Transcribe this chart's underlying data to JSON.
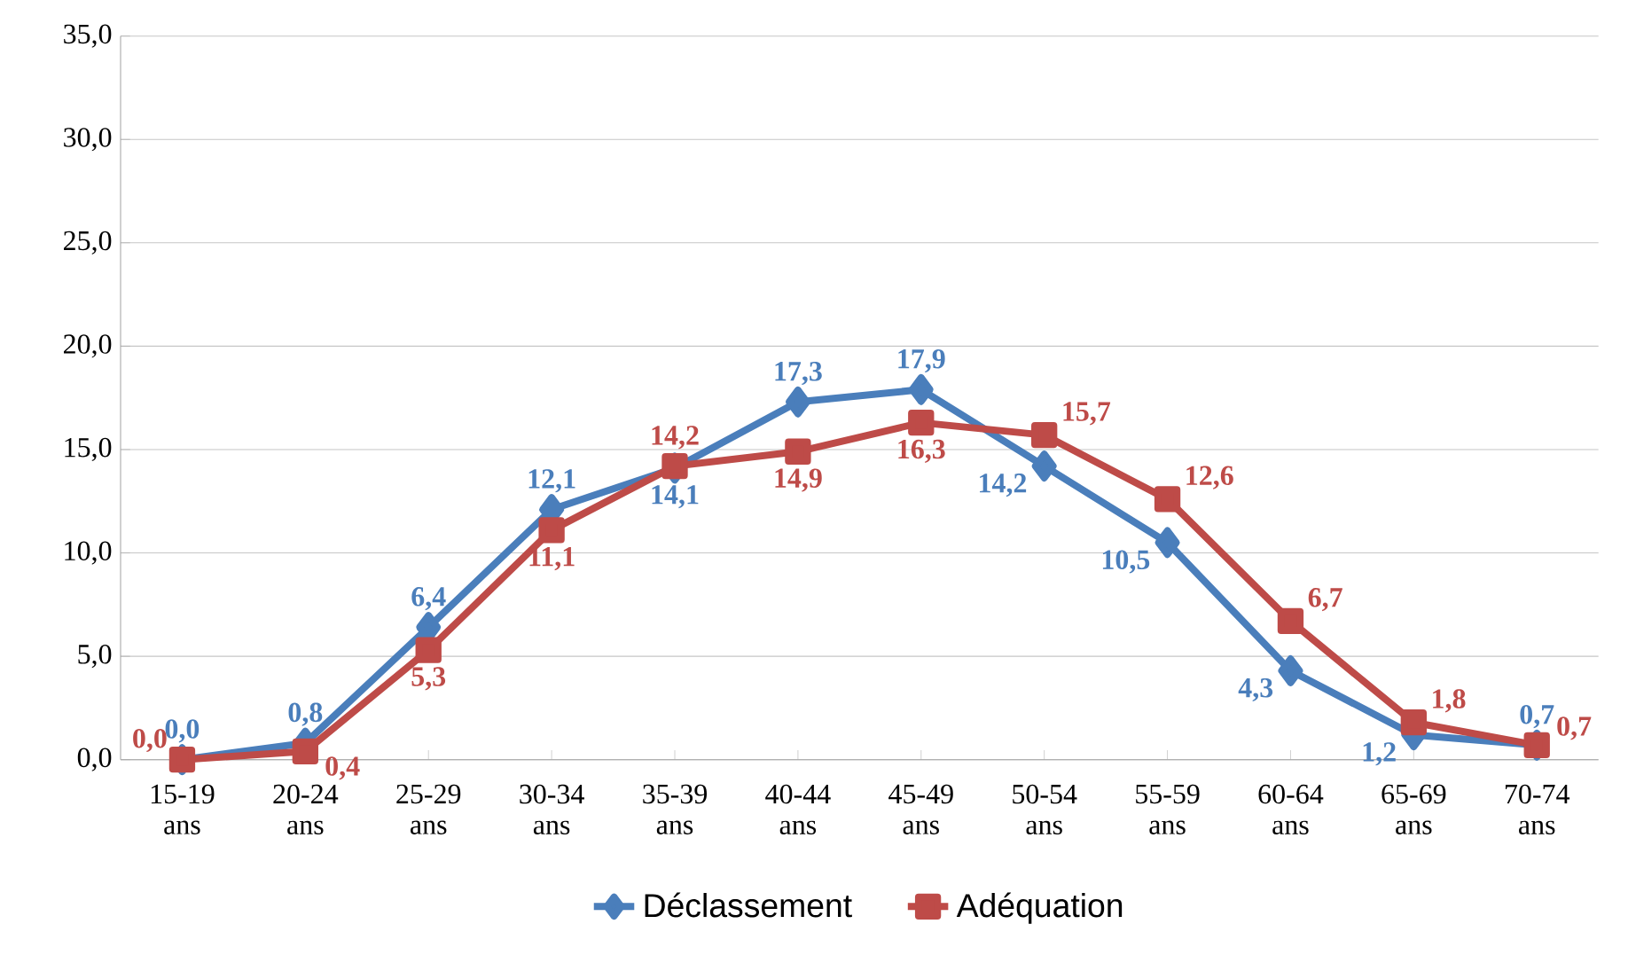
{
  "chart_data": {
    "type": "line",
    "categories": [
      "15-19 ans",
      "20-24 ans",
      "25-29 ans",
      "30-34 ans",
      "35-39 ans",
      "40-44 ans",
      "45-49 ans",
      "50-54 ans",
      "55-59 ans",
      "60-64 ans",
      "65-69 ans",
      "70-74 ans"
    ],
    "series": [
      {
        "name": "Déclassement",
        "color": "#4a7ebb",
        "marker": "diamond",
        "values": [
          0.0,
          0.8,
          6.4,
          12.1,
          14.1,
          17.3,
          17.9,
          14.2,
          10.5,
          4.3,
          1.2,
          0.7
        ],
        "value_labels": [
          "0,0",
          "0,8",
          "6,4",
          "12,1",
          "14,1",
          "17,3",
          "17,9",
          "14,2",
          "10,5",
          "4,3",
          "1,2",
          "0,7"
        ]
      },
      {
        "name": "Adéquation",
        "color": "#be4b48",
        "marker": "square",
        "values": [
          0.0,
          0.4,
          5.3,
          11.1,
          14.2,
          14.9,
          16.3,
          15.7,
          12.6,
          6.7,
          1.8,
          0.7
        ],
        "value_labels": [
          "0,0",
          "0,4",
          "5,3",
          "11,1",
          "14,2",
          "14,9",
          "16,3",
          "15,7",
          "12,6",
          "6,7",
          "1,8",
          "0,7"
        ]
      }
    ],
    "ylim": [
      0,
      35
    ],
    "yticks": [
      {
        "value": 0,
        "label": "0,0"
      },
      {
        "value": 5,
        "label": "5,0"
      },
      {
        "value": 10,
        "label": "10,0"
      },
      {
        "value": 15,
        "label": "15,0"
      },
      {
        "value": 20,
        "label": "20,0"
      },
      {
        "value": 25,
        "label": "25,0"
      },
      {
        "value": 30,
        "label": "30,0"
      },
      {
        "value": 35,
        "label": "35,0"
      }
    ],
    "grid": "y",
    "legend": "bottom",
    "line_style": "solid"
  }
}
